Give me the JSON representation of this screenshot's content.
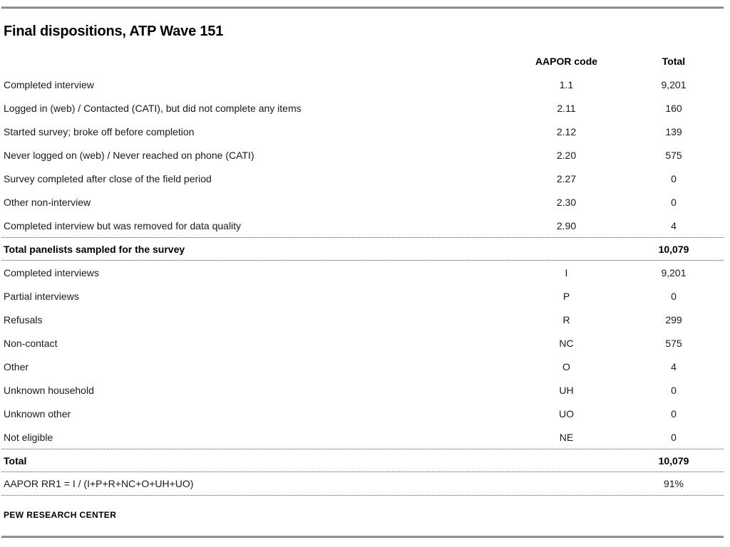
{
  "page": {
    "title": "Final dispositions, ATP Wave 151",
    "source": "PEW RESEARCH CENTER"
  },
  "colors": {
    "thick_rule_gray": "#6e6e6e",
    "dotted_rule_gray": "#4f4f4f",
    "text": "#1a1a1a"
  },
  "table": {
    "columns": {
      "label": "",
      "code": "AAPOR code",
      "total": "Total"
    },
    "rows": [
      {
        "label": "Completed interview",
        "code": "1.1",
        "total": "9,201",
        "bold": false,
        "border_top": false,
        "border_bottom": false
      },
      {
        "label": "Logged in (web) / Contacted (CATI), but did not complete any items",
        "code": "2.11",
        "total": "160",
        "bold": false,
        "border_top": false,
        "border_bottom": false
      },
      {
        "label": "Started survey; broke off before completion",
        "code": "2.12",
        "total": "139",
        "bold": false,
        "border_top": false,
        "border_bottom": false
      },
      {
        "label": "Never logged on (web) / Never reached on phone (CATI)",
        "code": "2.20",
        "total": "575",
        "bold": false,
        "border_top": false,
        "border_bottom": false
      },
      {
        "label": "Survey completed after close of the field period",
        "code": "2.27",
        "total": "0",
        "bold": false,
        "border_top": false,
        "border_bottom": false
      },
      {
        "label": "Other non-interview",
        "code": "2.30",
        "total": "0",
        "bold": false,
        "border_top": false,
        "border_bottom": false
      },
      {
        "label": "Completed interview but was removed for data quality",
        "code": "2.90",
        "total": "4",
        "bold": false,
        "border_top": false,
        "border_bottom": false
      },
      {
        "label": "Total panelists sampled for the survey",
        "code": "",
        "total": "10,079",
        "bold": true,
        "border_top": true,
        "border_bottom": true
      },
      {
        "label": "Completed interviews",
        "code": "I",
        "total": "9,201",
        "bold": false,
        "border_top": false,
        "border_bottom": false
      },
      {
        "label": "Partial interviews",
        "code": "P",
        "total": "0",
        "bold": false,
        "border_top": false,
        "border_bottom": false
      },
      {
        "label": "Refusals",
        "code": "R",
        "total": "299",
        "bold": false,
        "border_top": false,
        "border_bottom": false
      },
      {
        "label": "Non-contact",
        "code": "NC",
        "total": "575",
        "bold": false,
        "border_top": false,
        "border_bottom": false
      },
      {
        "label": "Other",
        "code": "O",
        "total": "4",
        "bold": false,
        "border_top": false,
        "border_bottom": false
      },
      {
        "label": "Unknown household",
        "code": "UH",
        "total": "0",
        "bold": false,
        "border_top": false,
        "border_bottom": false
      },
      {
        "label": "Unknown other",
        "code": "UO",
        "total": "0",
        "bold": false,
        "border_top": false,
        "border_bottom": false
      },
      {
        "label": "Not eligible",
        "code": "NE",
        "total": "0",
        "bold": false,
        "border_top": false,
        "border_bottom": false
      },
      {
        "label": "Total",
        "code": "",
        "total": "10,079",
        "bold": true,
        "border_top": true,
        "border_bottom": true
      },
      {
        "label": "AAPOR RR1 = I / (I+P+R+NC+O+UH+UO)",
        "code": "",
        "total": "91%",
        "bold": false,
        "border_top": false,
        "border_bottom": true
      }
    ]
  }
}
